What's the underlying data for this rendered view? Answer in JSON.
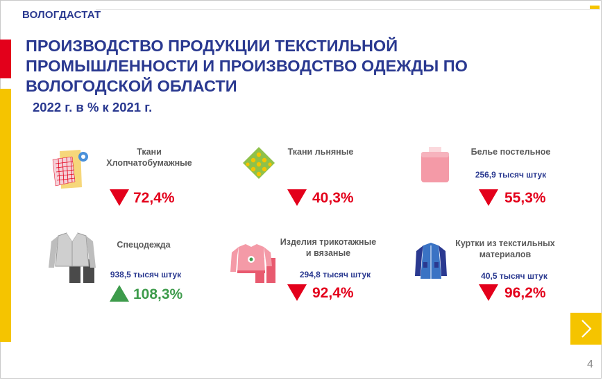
{
  "header": {
    "brand": "ВОЛОГДАСТАТ"
  },
  "slide": {
    "title": "ПРОИЗВОДСТВО ПРОДУКЦИИ ТЕКСТИЛЬНОЙ ПРОМЫШЛЕННОСТИ И ПРОИЗВОДСТВО ОДЕЖДЫ ПО ВОЛОГОДСКОЙ ОБЛАСТИ",
    "subtitle": "2022 г. в % к 2021 г."
  },
  "items": [
    {
      "label_line1": "Ткани",
      "label_line2": "Хлопчатобумажные",
      "units": "",
      "value": "72,4%",
      "trend": "down",
      "icon": "cotton-fabric-icon"
    },
    {
      "label_line1": "Ткани льняные",
      "label_line2": "",
      "units": "",
      "value": "40,3%",
      "trend": "down",
      "icon": "linen-fabric-icon"
    },
    {
      "label_line1": "Белье постельное",
      "label_line2": "",
      "units": "256,9 тысяч штук",
      "value": "55,3%",
      "trend": "down",
      "icon": "bed-linen-icon"
    },
    {
      "label_line1": "Спецодежда",
      "label_line2": "",
      "units": "938,5 тысяч штук",
      "value": "108,3%",
      "trend": "up",
      "icon": "workwear-icon"
    },
    {
      "label_line1": "Изделия трикотажные",
      "label_line2": "и вязаные",
      "units": "294,8 тысяч штук",
      "value": "92,4%",
      "trend": "down",
      "icon": "knitwear-icon"
    },
    {
      "label_line1": "Куртки из текстильных",
      "label_line2": "материалов",
      "units": "40,5 тысяч штук",
      "value": "96,2%",
      "trend": "down",
      "icon": "jacket-icon"
    }
  ],
  "nav": {
    "next_icon": "chevron-right-icon"
  },
  "page": {
    "number": "4"
  },
  "colors": {
    "brand_blue": "#2a3990",
    "accent_red": "#e3001b",
    "accent_yellow": "#f5c400",
    "positive_green": "#3d9b4b"
  }
}
